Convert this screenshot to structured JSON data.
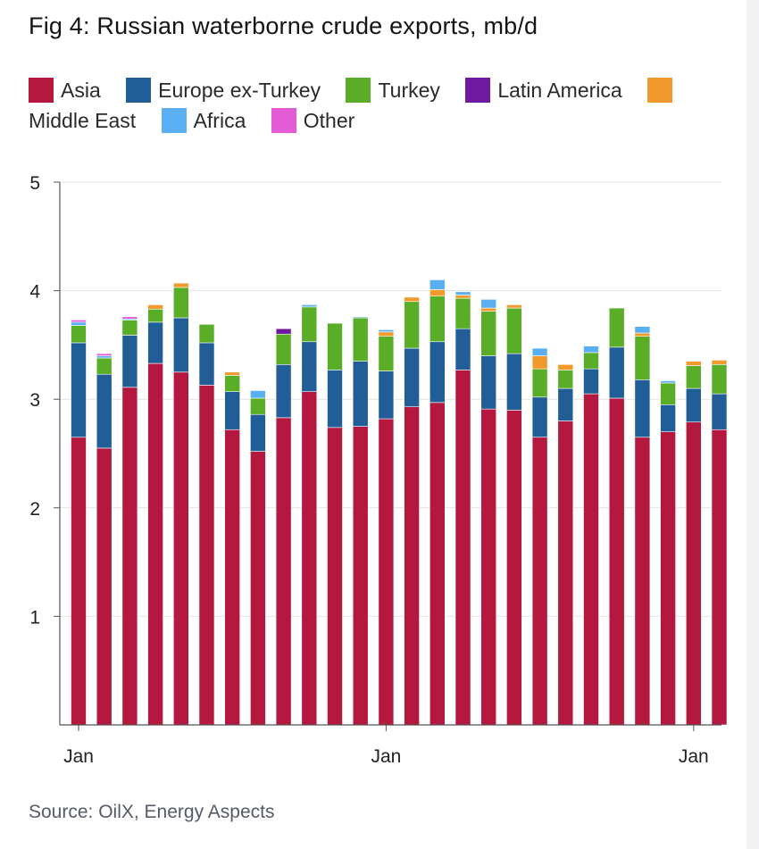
{
  "title": "Fig 4: Russian waterborne crude exports, mb/d",
  "source": "Source: OilX, Energy Aspects",
  "chart_data": {
    "type": "bar",
    "stacked": true,
    "title": "Fig 4: Russian waterborne crude exports, mb/d",
    "xlabel": "",
    "ylabel": "",
    "ylim": [
      0,
      5
    ],
    "y_ticks": [
      "1",
      "2",
      "3",
      "4",
      "5"
    ],
    "x_tick_labels": [
      {
        "index": 0,
        "label": "Jan"
      },
      {
        "index": 12,
        "label": "Jan"
      },
      {
        "index": 24,
        "label": "Jan"
      }
    ],
    "grid": "horizontal",
    "legend_position": "top",
    "series": [
      {
        "name": "Asia",
        "color": "#b5183f",
        "values": [
          2.65,
          2.55,
          3.11,
          3.33,
          3.25,
          3.13,
          2.72,
          2.52,
          2.83,
          3.07,
          2.74,
          2.75,
          2.82,
          2.93,
          2.97,
          3.27,
          2.91,
          2.9,
          2.65,
          2.8,
          3.05,
          3.01,
          2.65,
          2.7,
          2.79,
          2.72
        ]
      },
      {
        "name": "Europe ex-Turkey",
        "color": "#215d96",
        "values": [
          0.87,
          0.68,
          0.48,
          0.38,
          0.5,
          0.39,
          0.35,
          0.34,
          0.49,
          0.46,
          0.53,
          0.6,
          0.44,
          0.54,
          0.56,
          0.38,
          0.49,
          0.52,
          0.37,
          0.3,
          0.23,
          0.47,
          0.53,
          0.25,
          0.31,
          0.33
        ]
      },
      {
        "name": "Turkey",
        "color": "#5aad27",
        "values": [
          0.16,
          0.15,
          0.14,
          0.12,
          0.28,
          0.17,
          0.15,
          0.15,
          0.28,
          0.32,
          0.43,
          0.4,
          0.32,
          0.43,
          0.42,
          0.28,
          0.41,
          0.42,
          0.26,
          0.17,
          0.15,
          0.36,
          0.4,
          0.2,
          0.21,
          0.27
        ]
      },
      {
        "name": "Latin America",
        "color": "#6e1aa0",
        "values": [
          0,
          0,
          0,
          0,
          0,
          0,
          0,
          0,
          0.05,
          0,
          0,
          0,
          0,
          0,
          0,
          0,
          0,
          0,
          0,
          0,
          0,
          0,
          0,
          0,
          0,
          0
        ]
      },
      {
        "name": "Middle East",
        "color": "#f2992e",
        "values": [
          0,
          0,
          0,
          0.04,
          0.04,
          0,
          0.03,
          0,
          0,
          0,
          0,
          0,
          0.04,
          0.04,
          0.06,
          0.03,
          0.03,
          0.03,
          0.12,
          0.05,
          0,
          0,
          0.03,
          0,
          0.04,
          0.04
        ]
      },
      {
        "name": "Africa",
        "color": "#5aaff2",
        "values": [
          0.03,
          0.02,
          0.01,
          0,
          0,
          0,
          0,
          0.07,
          0,
          0.02,
          0,
          0.01,
          0.02,
          0,
          0.09,
          0.03,
          0.08,
          0,
          0.07,
          0,
          0.06,
          0,
          0.06,
          0.02,
          0,
          0
        ]
      },
      {
        "name": "Other",
        "color": "#e35bd5",
        "values": [
          0.02,
          0.02,
          0.02,
          0,
          0,
          0,
          0,
          0,
          0,
          0,
          0,
          0,
          0,
          0,
          0,
          0,
          0,
          0,
          0,
          0,
          0,
          0,
          0,
          0,
          0,
          0
        ]
      }
    ]
  }
}
